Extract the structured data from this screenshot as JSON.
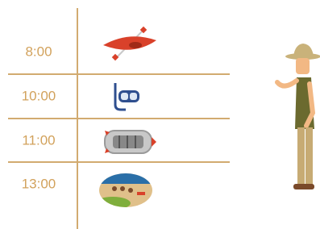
{
  "schedule": {
    "times": [
      "8:00",
      "10:00",
      "11:00",
      "13:00"
    ]
  }
}
